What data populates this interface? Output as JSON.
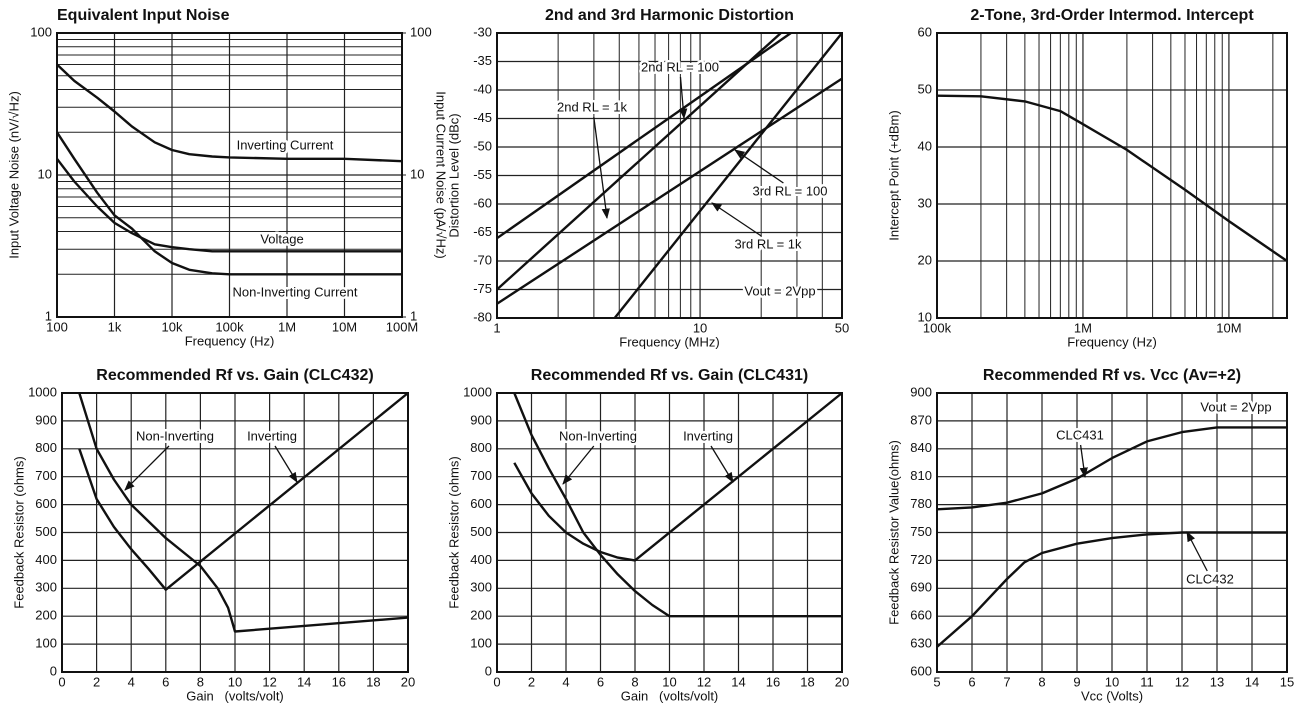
{
  "chart_data": [
    {
      "type": "line",
      "title": "Equivalent Input Noise",
      "x_label": "Frequency (Hz)",
      "y_label": "Input Voltage Noise (nV/√Hz)",
      "y2_label": "Input Current Noise (pA/√Hz)",
      "xlog": true,
      "ylog": true,
      "minor_grid": "y",
      "xlim": [
        100,
        100000000
      ],
      "xticks": [
        100,
        {
          "value": 1000,
          "label": "1k"
        },
        {
          "value": 10000,
          "label": "10k"
        },
        {
          "value": 100000,
          "label": "100k"
        },
        {
          "value": 1000000,
          "label": "1M"
        },
        {
          "value": 10000000,
          "label": "10M"
        },
        {
          "value": 100000000,
          "label": "100M"
        }
      ],
      "ylim": [
        1,
        100
      ],
      "yticks": [
        1,
        10,
        100
      ],
      "y2lim": [
        1,
        100
      ],
      "y2ticks": [
        1,
        10,
        100
      ],
      "series": [
        {
          "name": "Inverting Current",
          "color": "#111111",
          "axis": "y2",
          "x": [
            100,
            200,
            500,
            1000,
            2000,
            5000,
            10000,
            20000,
            50000,
            100000,
            1000000,
            10000000,
            100000000
          ],
          "values": [
            60,
            46,
            35,
            28,
            22,
            17,
            15,
            14,
            13.5,
            13.3,
            13,
            13,
            12.5
          ]
        },
        {
          "name": "Voltage",
          "color": "#111111",
          "x": [
            100,
            200,
            500,
            1000,
            2000,
            5000,
            10000,
            20000,
            50000,
            100000,
            1000000,
            100000000
          ],
          "values": [
            13,
            9,
            6,
            4.6,
            3.9,
            3.25,
            3.1,
            3,
            2.9,
            2.9,
            2.9,
            2.9
          ]
        },
        {
          "name": "Non-Inverting Current",
          "color": "#111111",
          "axis": "y2",
          "x": [
            100,
            200,
            500,
            1000,
            2000,
            5000,
            10000,
            20000,
            50000,
            100000,
            1000000,
            100000000
          ],
          "values": [
            20,
            13,
            7.5,
            5.2,
            4.2,
            2.9,
            2.4,
            2.15,
            2.03,
            2,
            2,
            2
          ]
        }
      ]
    },
    {
      "type": "line",
      "title": "2nd and 3rd Harmonic Distortion",
      "x_label": "Frequency (MHz)",
      "y_label": "Distortion Level (dBc)",
      "xlog": true,
      "minor_grid": "x",
      "xlim": [
        1,
        50
      ],
      "xticks": [
        1,
        10,
        50
      ],
      "ylim": [
        -80,
        -30
      ],
      "yticks": [
        -80,
        -75,
        -70,
        -65,
        -60,
        -55,
        -50,
        -45,
        -40,
        -35,
        -30
      ],
      "annotations": [
        "Vout = 2Vpp"
      ],
      "series": [
        {
          "name": "2nd RL = 100",
          "color": "#111111",
          "x": [
            1,
            28
          ],
          "values": [
            -66,
            -30
          ]
        },
        {
          "name": "2nd RL = 1k",
          "color": "#111111",
          "x": [
            1,
            25
          ],
          "values": [
            -75,
            -30
          ]
        },
        {
          "name": "3rd RL = 100",
          "color": "#111111",
          "x": [
            1,
            50
          ],
          "values": [
            -77.5,
            -38
          ]
        },
        {
          "name": "3rd RL = 1k",
          "color": "#111111",
          "x": [
            3.8,
            50
          ],
          "values": [
            -80,
            -30
          ]
        }
      ]
    },
    {
      "type": "line",
      "title": "2-Tone, 3rd-Order Intermod. Intercept",
      "x_label": "Frequency (Hz)",
      "y_label": "Intercept Point (+dBm)",
      "xlog": true,
      "minor_grid": "x",
      "xlim": [
        100000,
        25000000
      ],
      "xticks": [
        {
          "value": 100000,
          "label": "100k"
        },
        {
          "value": 1000000,
          "label": "1M"
        },
        {
          "value": 10000000,
          "label": "10M"
        }
      ],
      "ylim": [
        10,
        60
      ],
      "yticks": [
        10,
        20,
        30,
        40,
        50,
        60
      ],
      "series": [
        {
          "name": "Intercept Point",
          "color": "#111111",
          "x": [
            100000,
            200000,
            400000,
            700000,
            1000000,
            2000000,
            5000000,
            10000000,
            25000000
          ],
          "values": [
            49,
            48.9,
            48,
            46.3,
            44,
            39.5,
            32.5,
            27,
            20
          ]
        }
      ]
    },
    {
      "type": "line",
      "title": "Recommended Rf vs. Gain (CLC432)",
      "x_label": "Gain   (volts/volt)",
      "y_label": "Feedback Resistor (ohms)",
      "xlim": [
        0,
        20
      ],
      "xticks": [
        0,
        2,
        4,
        6,
        8,
        10,
        12,
        14,
        16,
        18,
        20
      ],
      "ylim": [
        0,
        1000
      ],
      "yticks": [
        0,
        100,
        200,
        300,
        400,
        500,
        600,
        700,
        800,
        900,
        1000
      ],
      "series": [
        {
          "name": "Non-Inverting",
          "color": "#111111",
          "x": [
            1,
            2,
            3,
            4,
            6,
            8,
            9,
            9.6,
            10,
            20
          ],
          "values": [
            1000,
            800,
            690,
            600,
            480,
            380,
            300,
            230,
            145,
            195
          ]
        },
        {
          "name": "Inverting",
          "color": "#111111",
          "x": [
            1,
            2,
            3,
            4,
            5,
            6,
            20
          ],
          "values": [
            800,
            620,
            520,
            440,
            370,
            295,
            1000
          ]
        }
      ]
    },
    {
      "type": "line",
      "title": "Recommended Rf vs. Gain (CLC431)",
      "x_label": "Gain   (volts/volt)",
      "y_label": "Feedback Resistor (ohms)",
      "xlim": [
        0,
        20
      ],
      "xticks": [
        0,
        2,
        4,
        6,
        8,
        10,
        12,
        14,
        16,
        18,
        20
      ],
      "ylim": [
        0,
        1000
      ],
      "yticks": [
        0,
        100,
        200,
        300,
        400,
        500,
        600,
        700,
        800,
        900,
        1000
      ],
      "series": [
        {
          "name": "Non-Inverting",
          "color": "#111111",
          "x": [
            1,
            2,
            3,
            4,
            5,
            6,
            7,
            8,
            9,
            10,
            20
          ],
          "values": [
            1000,
            850,
            730,
            620,
            500,
            420,
            350,
            290,
            240,
            200,
            200
          ]
        },
        {
          "name": "Inverting",
          "color": "#111111",
          "x": [
            1,
            2,
            3,
            4,
            5,
            6,
            7,
            8,
            20
          ],
          "values": [
            750,
            640,
            560,
            500,
            460,
            430,
            410,
            400,
            1000
          ]
        }
      ]
    },
    {
      "type": "line",
      "title": "Recommended Rf vs. Vcc (Av=+2)",
      "x_label": "Vcc (Volts)",
      "y_label": "Feedback Resistor Value(ohms)",
      "xlim": [
        5,
        15
      ],
      "xticks": [
        5,
        6,
        7,
        8,
        9,
        10,
        11,
        12,
        13,
        14,
        15
      ],
      "ylim": [
        600,
        900
      ],
      "yticks": [
        600,
        630,
        660,
        690,
        720,
        750,
        780,
        810,
        840,
        870,
        900
      ],
      "annotations": [
        "Vout = 2Vpp"
      ],
      "series": [
        {
          "name": "CLC431",
          "color": "#111111",
          "x": [
            5,
            6,
            7,
            8,
            9,
            10,
            11,
            12,
            13,
            15
          ],
          "values": [
            775,
            777,
            782,
            792,
            808,
            830,
            848,
            858,
            863,
            863
          ]
        },
        {
          "name": "CLC432",
          "color": "#111111",
          "x": [
            5,
            6,
            7,
            7.5,
            8,
            9,
            10,
            11,
            12,
            15
          ],
          "values": [
            627,
            660,
            700,
            718,
            728,
            738,
            744,
            748,
            750,
            750
          ]
        }
      ]
    }
  ]
}
